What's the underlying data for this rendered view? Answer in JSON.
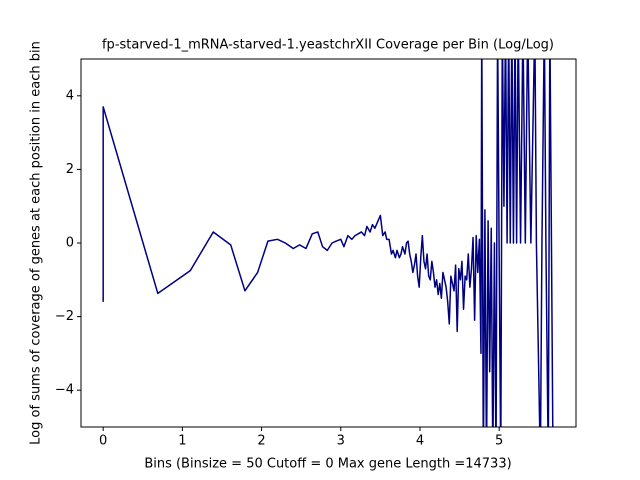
{
  "chart_data": {
    "type": "line",
    "title": "fp-starved-1_mRNA-starved-1.yeastchrXII Coverage per Bin (Log/Log)",
    "xlabel": "Bins  (Binsize = 50 Cutoff = 0 Max gene Length =14733)",
    "ylabel": "Log of sums of coverage of genes at each position in each bin",
    "x": [
      0,
      0,
      0.69,
      1.1,
      1.39,
      1.61,
      1.79,
      1.95,
      2.08,
      2.2,
      2.3,
      2.4,
      2.48,
      2.56,
      2.64,
      2.71,
      2.77,
      2.83,
      2.89,
      2.94,
      3.0,
      3.04,
      3.09,
      3.14,
      3.18,
      3.22,
      3.26,
      3.3,
      3.33,
      3.37,
      3.4,
      3.43,
      3.47,
      3.5,
      3.53,
      3.56,
      3.58,
      3.61,
      3.64,
      3.66,
      3.69,
      3.71,
      3.74,
      3.76,
      3.78,
      3.81,
      3.83,
      3.85,
      3.87,
      3.89,
      3.91,
      3.93,
      3.95,
      3.97,
      3.99,
      4.01,
      4.03,
      4.05,
      4.07,
      4.09,
      4.11,
      4.13,
      4.15,
      4.17,
      4.19,
      4.21,
      4.23,
      4.25,
      4.27,
      4.29,
      4.31,
      4.33,
      4.35,
      4.37,
      4.39,
      4.41,
      4.43,
      4.45,
      4.47,
      4.49,
      4.51,
      4.53,
      4.55,
      4.57,
      4.59,
      4.61,
      4.63,
      4.65,
      4.67,
      4.69,
      4.71,
      4.73,
      4.75,
      4.77,
      4.78,
      4.8,
      4.82,
      4.84,
      4.86,
      4.88,
      4.9,
      4.92,
      4.94,
      4.96,
      4.98,
      5.0,
      5.02,
      5.04,
      5.06,
      5.08,
      5.1,
      5.12,
      5.14,
      5.16,
      5.18,
      5.2,
      5.22,
      5.24,
      5.27,
      5.3,
      5.33,
      5.36,
      5.4,
      5.45,
      5.47,
      5.52,
      5.54,
      5.57,
      5.59,
      5.62,
      5.64,
      5.66,
      5.68
    ],
    "series": [
      {
        "color": "#000080",
        "values": [
          -1.6,
          3.7,
          -1.37,
          -0.75,
          0.3,
          -0.05,
          -1.3,
          -0.8,
          0.05,
          0.1,
          0,
          -0.15,
          -0.05,
          -0.15,
          0.25,
          0.3,
          -0.1,
          -0.2,
          0,
          0.05,
          0.1,
          -0.1,
          0.2,
          0.1,
          0.2,
          0.25,
          0.3,
          0.2,
          0.45,
          0.3,
          0.5,
          0.4,
          0.6,
          0.75,
          0.2,
          0.3,
          0.1,
          0.1,
          -0.3,
          -0.2,
          -0.4,
          -0.2,
          -0.4,
          -0.3,
          -0.1,
          -0.3,
          0,
          0.05,
          -0.3,
          -0.5,
          -0.8,
          -0.6,
          -0.3,
          -0.9,
          -1.2,
          -0.4,
          0.2,
          -0.5,
          -0.7,
          -0.3,
          -0.9,
          -1.0,
          -0.5,
          -0.8,
          -1.2,
          -1.0,
          -1.4,
          -1.1,
          -1.5,
          -0.8,
          -1.0,
          -1.2,
          -1.6,
          -2.2,
          -0.9,
          -1.1,
          -1.3,
          -0.6,
          -2.4,
          -0.7,
          -1.0,
          -0.5,
          -1.8,
          -0.9,
          -1.0,
          -0.3,
          -1.2,
          -0.7,
          0.15,
          -2.1,
          0.2,
          -0.8,
          0.1,
          -3.0,
          6,
          -6,
          0.9,
          -6,
          0.6,
          -3.5,
          0.4,
          -6,
          0,
          -6,
          6,
          -0.4,
          -6,
          6,
          1.0,
          6,
          0,
          6,
          0,
          6,
          0,
          6,
          0,
          6,
          0,
          6,
          0,
          6,
          0,
          6,
          0,
          -6,
          0,
          6,
          0,
          -6,
          6,
          0,
          -6
        ]
      }
    ],
    "xlim": [
      -0.28,
      5.97
    ],
    "ylim": [
      -5,
      5
    ],
    "xticks": [
      0,
      1,
      2,
      3,
      4,
      5
    ],
    "yticks": [
      {
        "value": -4,
        "label": "−4"
      },
      {
        "value": -2,
        "label": "−2"
      },
      0,
      2,
      4
    ]
  }
}
